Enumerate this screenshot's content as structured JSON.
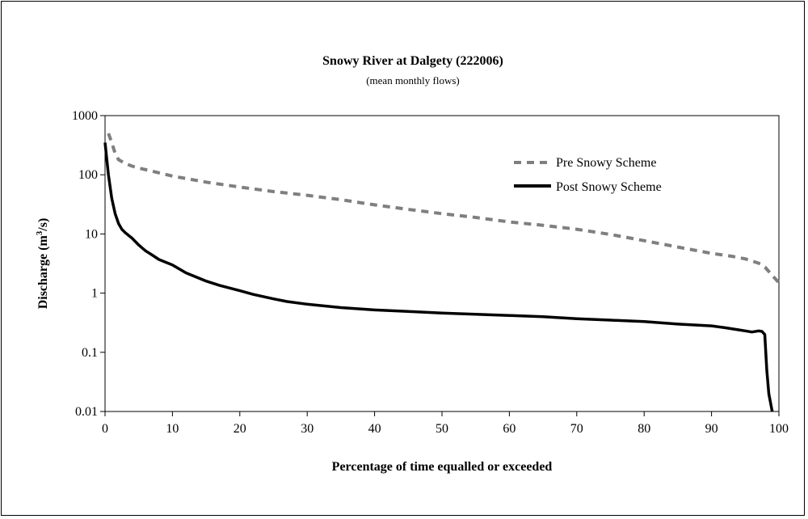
{
  "chart_data": {
    "type": "line",
    "title": "Snowy River at Dalgety (222006)",
    "subtitle": "(mean monthly flows)",
    "xlabel": "Percentage of time equalled or exceeded",
    "ylabel_main": "Discharge (m",
    "ylabel_sup": "3",
    "ylabel_end": "/s)",
    "xlim": [
      0,
      100
    ],
    "ylim": [
      0.01,
      1000
    ],
    "yscale": "log",
    "grid": false,
    "legend_position": "top-right",
    "x_ticks": [
      0,
      10,
      20,
      30,
      40,
      50,
      60,
      70,
      80,
      90,
      100
    ],
    "y_ticks": [
      {
        "value": 0.01,
        "label": "0.01"
      },
      {
        "value": 0.1,
        "label": "0.1"
      },
      {
        "value": 1,
        "label": "1"
      },
      {
        "value": 10,
        "label": "10"
      },
      {
        "value": 100,
        "label": "100"
      },
      {
        "value": 1000,
        "label": "1000"
      }
    ],
    "series": [
      {
        "name": "Pre Snowy Scheme",
        "color": "#7f7f7f",
        "dash": "dashed",
        "x": [
          0.5,
          1,
          1.5,
          2,
          3,
          4,
          5,
          7,
          10,
          15,
          20,
          25,
          30,
          35,
          40,
          45,
          50,
          55,
          60,
          65,
          70,
          75,
          80,
          85,
          90,
          93,
          95,
          96,
          97,
          97.5,
          98,
          99,
          100
        ],
        "y": [
          500,
          350,
          230,
          180,
          155,
          140,
          130,
          115,
          95,
          75,
          62,
          52,
          45,
          38,
          31,
          26,
          22,
          19,
          16,
          14,
          12,
          9.8,
          7.7,
          6.0,
          4.7,
          4.2,
          3.8,
          3.5,
          3.2,
          3.0,
          2.7,
          2.0,
          1.5
        ]
      },
      {
        "name": "Post Snowy Scheme",
        "color": "#000000",
        "dash": "solid",
        "x": [
          0,
          0.5,
          1,
          1.5,
          2,
          2.5,
          3,
          4,
          5,
          6,
          7,
          8,
          10,
          12,
          15,
          17,
          20,
          22,
          25,
          27,
          30,
          35,
          40,
          45,
          50,
          55,
          60,
          65,
          70,
          75,
          80,
          85,
          90,
          92,
          94,
          95,
          96,
          97,
          97.5,
          97.9,
          98.2,
          98.5,
          99
        ],
        "y": [
          350,
          100,
          40,
          22,
          15,
          12,
          10.5,
          8.5,
          6.5,
          5.2,
          4.4,
          3.7,
          3.0,
          2.2,
          1.6,
          1.35,
          1.1,
          0.95,
          0.8,
          0.72,
          0.65,
          0.57,
          0.52,
          0.49,
          0.46,
          0.44,
          0.42,
          0.4,
          0.37,
          0.35,
          0.33,
          0.3,
          0.28,
          0.26,
          0.24,
          0.23,
          0.22,
          0.23,
          0.225,
          0.2,
          0.05,
          0.02,
          0.01
        ]
      }
    ]
  }
}
